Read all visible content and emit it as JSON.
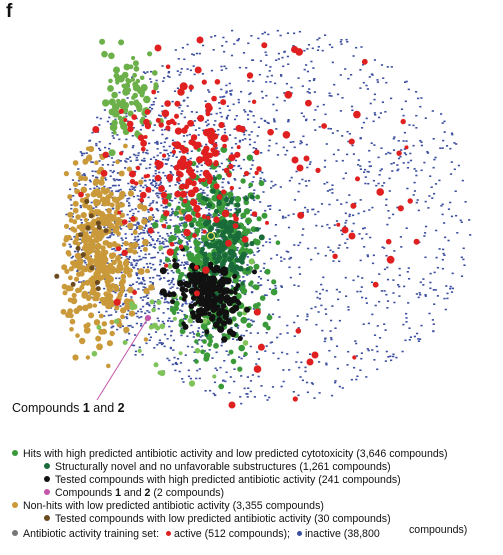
{
  "panel_label": "f",
  "callout": {
    "prefix": "Compounds ",
    "n1": "1",
    "mid": " and ",
    "n2": "2"
  },
  "legend": {
    "hits": {
      "label": "Hits with high predicted antibiotic activity and low predicted cytotoxicity (3,646 compounds)",
      "color": "#3a9a3a"
    },
    "novel": {
      "label": "Structurally novel and no unfavorable substructures (1,261 compounds)",
      "color": "#1a6b3a"
    },
    "tested_high": {
      "label": "Tested compounds with high predicted antibiotic activity (241 compounds)",
      "color": "#111111"
    },
    "compounds12": {
      "pre": "Compounds ",
      "n1": "1",
      "mid": " and ",
      "n2": "2",
      "post": " (2 compounds)",
      "color": "#c455a8"
    },
    "nonhits": {
      "label": "Non-hits with low predicted antibiotic activity (3,355 compounds)",
      "color": "#c9993a"
    },
    "tested_low": {
      "label": "Tested compounds with low predicted antibiotic activity (30 compounds)",
      "color": "#6b4a1e"
    },
    "training": {
      "label": "Antibiotic activity training set:",
      "color": "#777777",
      "active": "active (512 compounds);",
      "active_color": "#e02020",
      "inactive": "inactive (38,800",
      "inactive_color": "#3c4fa0",
      "suffix": "compounds)"
    }
  },
  "chart_data": {
    "type": "scatter",
    "title": "",
    "xlabel": "",
    "ylabel": "",
    "grid": false,
    "axes_visible": false,
    "series": [
      {
        "name": "inactive (38,800 compounds)",
        "color": "#3c4fa0",
        "approx_center": [
          280,
          200
        ],
        "spread": "wide cloud covering whole map"
      },
      {
        "name": "active (512 compounds)",
        "color": "#e02020",
        "approx_center": [
          200,
          180
        ],
        "spread": "scattered"
      },
      {
        "name": "Non-hits with low predicted antibiotic activity (3,355 compounds)",
        "color": "#c9993a",
        "approx_center": [
          95,
          250
        ]
      },
      {
        "name": "Hits with high predicted antibiotic activity and low predicted cytotoxicity (3,646 compounds)",
        "color": "#3a9a3a",
        "approx_center": [
          215,
          250
        ]
      },
      {
        "name": "Tested compounds with high predicted antibiotic activity (241 compounds)",
        "color": "#111111",
        "approx_center": [
          210,
          290
        ]
      },
      {
        "name": "Compounds 1 and 2 (2 compounds)",
        "color": "#c455a8",
        "approx_center": [
          148,
          318
        ]
      }
    ]
  }
}
